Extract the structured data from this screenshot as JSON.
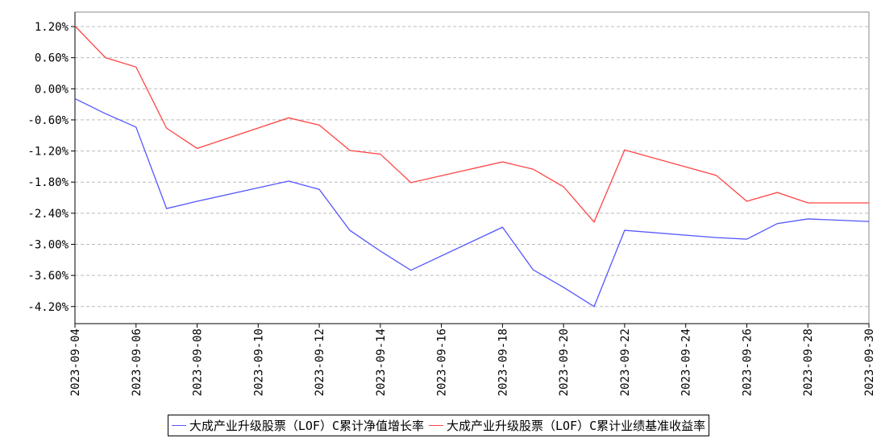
{
  "chart_data": {
    "type": "line",
    "x": [
      "2023-09-04",
      "2023-09-05",
      "2023-09-06",
      "2023-09-07",
      "2023-09-08",
      "2023-09-11",
      "2023-09-12",
      "2023-09-13",
      "2023-09-14",
      "2023-09-15",
      "2023-09-18",
      "2023-09-19",
      "2023-09-20",
      "2023-09-21",
      "2023-09-22",
      "2023-09-25",
      "2023-09-26",
      "2023-09-27",
      "2023-09-28",
      "2023-09-30"
    ],
    "series": [
      {
        "name": "大成产业升级股票（LOF）C累计净值增长率",
        "color": "#5555ff",
        "values": [
          -0.19,
          -0.48,
          -0.74,
          -2.31,
          -2.17,
          -1.78,
          -1.94,
          -2.73,
          -3.13,
          -3.5,
          -2.67,
          -3.49,
          -3.83,
          -4.2,
          -2.73,
          -2.87,
          -2.9,
          -2.6,
          -2.51,
          -2.56
        ]
      },
      {
        "name": "大成产业升级股票（LOF）C累计业绩基准收益率",
        "color": "#ff4444",
        "values": [
          1.21,
          0.6,
          0.42,
          -0.76,
          -1.15,
          -0.56,
          -0.7,
          -1.19,
          -1.26,
          -1.81,
          -1.41,
          -1.55,
          -1.89,
          -2.57,
          -1.18,
          -1.67,
          -2.17,
          -2.0,
          -2.2,
          -2.2
        ]
      }
    ],
    "xlim": [
      "2023-09-04",
      "2023-09-30"
    ],
    "xticks": [
      "2023-09-04",
      "2023-09-06",
      "2023-09-08",
      "2023-09-10",
      "2023-09-12",
      "2023-09-14",
      "2023-09-16",
      "2023-09-18",
      "2023-09-20",
      "2023-09-22",
      "2023-09-24",
      "2023-09-26",
      "2023-09-28",
      "2023-09-30"
    ],
    "ylim": [
      -4.53,
      1.48
    ],
    "yticks": [
      {
        "value": 1.2,
        "label": "1.20%"
      },
      {
        "value": 0.6,
        "label": "0.60%"
      },
      {
        "value": 0,
        "label": "0.00%"
      },
      {
        "value": -0.6,
        "label": "-0.60%"
      },
      {
        "value": -1.2,
        "label": "-1.20%"
      },
      {
        "value": -1.8,
        "label": "-1.80%"
      },
      {
        "value": -2.4,
        "label": "-2.40%"
      },
      {
        "value": -3,
        "label": "-3.00%"
      },
      {
        "value": -3.6,
        "label": "-3.60%"
      },
      {
        "value": -4.2,
        "label": "-4.20%"
      }
    ],
    "grid": true
  }
}
